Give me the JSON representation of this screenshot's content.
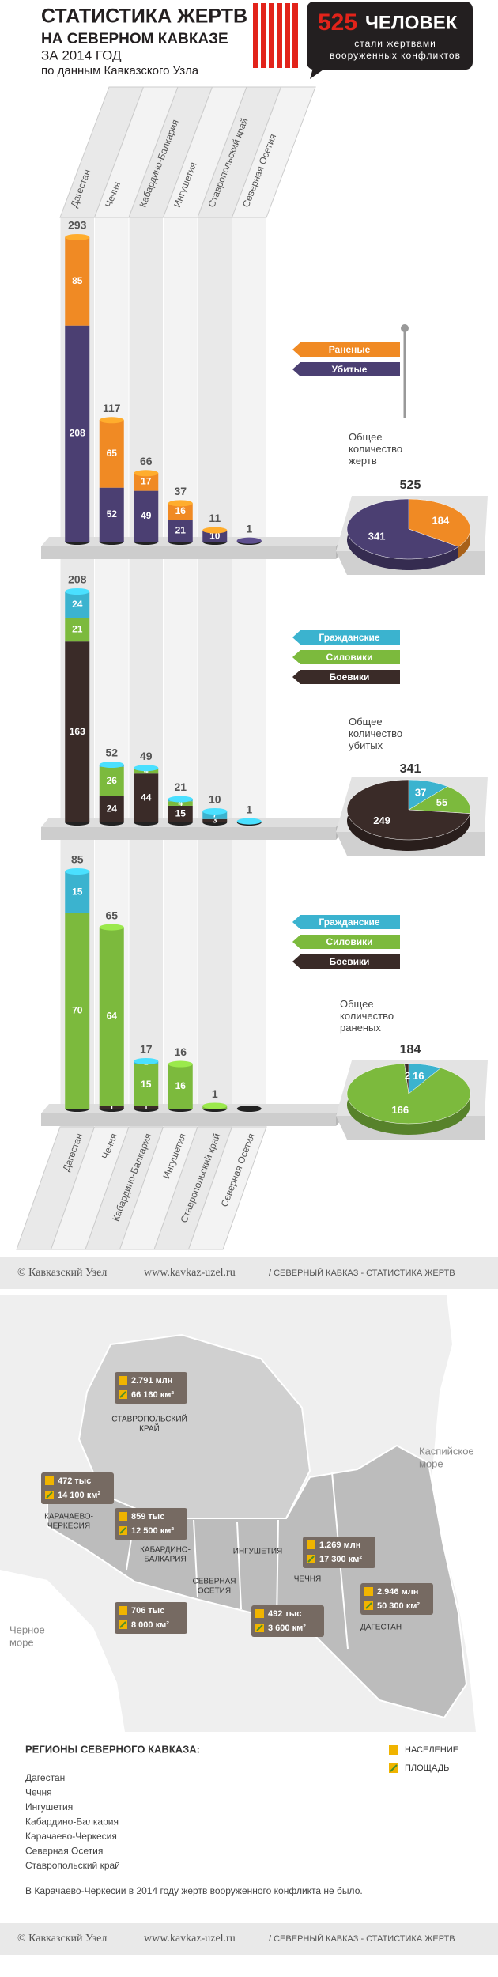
{
  "header": {
    "title": "СТАТИСТИКА ЖЕРТВ",
    "subtitle": "НА СЕВЕРНОМ КАВКАЗЕ",
    "period": "ЗА 2014 ГОД",
    "source": "по данным Кавказского Узла",
    "callout_number": 525,
    "callout_unit": "ЧЕЛОВЕК",
    "callout_text": "стали жертвами вооруженных конфликтов"
  },
  "chart_data": [
    {
      "type": "bar",
      "stacked": true,
      "categories": [
        "Дагестан",
        "Чечня",
        "Кабардино-Балкария",
        "Ингушетия",
        "Ставропольский край",
        "Северная Осетия"
      ],
      "series": [
        {
          "name": "Раненые",
          "color": "#f08a24",
          "values": [
            85,
            65,
            17,
            16,
            1,
            0
          ]
        },
        {
          "name": "Убитые",
          "color": "#4b3f72",
          "values": [
            208,
            52,
            49,
            21,
            10,
            1
          ]
        }
      ],
      "totals": [
        293,
        117,
        66,
        37,
        11,
        1
      ]
    },
    {
      "type": "pie",
      "title": "Общее количество жертв",
      "total": 525,
      "values": [
        184,
        341
      ],
      "colors": [
        "#f08a24",
        "#4b3f72"
      ]
    },
    {
      "type": "bar",
      "stacked": true,
      "series": [
        {
          "name": "Гражданские",
          "color": "#3bb3cf",
          "values": [
            24,
            2,
            1,
            2,
            7,
            1
          ]
        },
        {
          "name": "Силовики",
          "color": "#7cba3d",
          "values": [
            21,
            26,
            4,
            4,
            0,
            0
          ]
        },
        {
          "name": "Боевики",
          "color": "#3a2b28",
          "values": [
            163,
            24,
            44,
            15,
            3,
            0
          ]
        }
      ],
      "totals": [
        208,
        52,
        49,
        21,
        10,
        1
      ]
    },
    {
      "type": "pie",
      "title": "Общее количество убитых",
      "total": 341,
      "values": [
        37,
        55,
        249
      ],
      "colors": [
        "#3bb3cf",
        "#7cba3d",
        "#3a2b28"
      ]
    },
    {
      "type": "bar",
      "stacked": true,
      "categories": [
        "Дагестан",
        "Чечня",
        "Кабардино-Балкария",
        "Ингушетия",
        "Ставропольский край",
        "Северная Осетия"
      ],
      "series": [
        {
          "name": "Гражданские",
          "color": "#3bb3cf",
          "values": [
            15,
            0,
            1,
            0,
            0,
            0
          ]
        },
        {
          "name": "Силовики",
          "color": "#7cba3d",
          "values": [
            70,
            64,
            15,
            16,
            1,
            0
          ]
        },
        {
          "name": "Боевики",
          "color": "#3a2b28",
          "values": [
            0,
            1,
            1,
            0,
            0,
            0
          ]
        }
      ],
      "totals": [
        85,
        65,
        17,
        16,
        1,
        null
      ]
    },
    {
      "type": "pie",
      "title": "Общее количество раненых",
      "total": 184,
      "values": [
        16,
        166,
        2
      ],
      "colors": [
        "#3bb3cf",
        "#7cba3d",
        "#3a2b28"
      ]
    }
  ],
  "footer": {
    "copyright": "© Кавказский Узел",
    "url": "www.kavkaz-uzel.ru",
    "section": "/ СЕВЕРНЫЙ КАВКАЗ - СТАТИСТИКА ЖЕРТВ"
  },
  "map": {
    "seas": [
      {
        "name": [
          "Каспийское",
          "море"
        ]
      },
      {
        "name": [
          "Черное",
          "море"
        ]
      }
    ],
    "regions": [
      {
        "label": [
          "СТАВРОПОЛЬСКИЙ",
          "КРАЙ"
        ],
        "population": "2.791 млн",
        "area": "66 160 км²"
      },
      {
        "label": [
          "КАРАЧАЕВО-",
          "ЧЕРКЕСИЯ"
        ],
        "population": "472 тыс",
        "area": "14 100 км²"
      },
      {
        "label": [
          "КАБАРДИНО-",
          "БАЛКАРИЯ"
        ],
        "population": "859 тыс",
        "area": "12 500 км²"
      },
      {
        "label": [
          "СЕВЕРНАЯ",
          "ОСЕТИЯ"
        ],
        "population": "706 тыс",
        "area": "8 000 км²"
      },
      {
        "label": [
          "ИНГУШЕТИЯ"
        ],
        "population": "492 тыс",
        "area": "3 600 км²"
      },
      {
        "label": [
          "ЧЕЧНЯ"
        ],
        "population": "1.269 млн",
        "area": "17 300 км²"
      },
      {
        "label": [
          "ДАГЕСТАН"
        ],
        "population": "2.946 млн",
        "area": "50 300 км²"
      }
    ],
    "legend": {
      "population": "НАСЕЛЕНИЕ",
      "area": "ПЛОЩАДЬ"
    }
  },
  "regions_list": {
    "title": "РЕГИОНЫ СЕВЕРНОГО КАВКАЗА:",
    "items": [
      "Дагестан",
      "Чечня",
      "Ингушетия",
      "Кабардино-Балкария",
      "Карачаево-Черкесия",
      "Северная Осетия",
      "Ставропольский край"
    ]
  },
  "note": "В Карачаево-Черкесии в 2014 году жертв вооруженного конфликта не было."
}
